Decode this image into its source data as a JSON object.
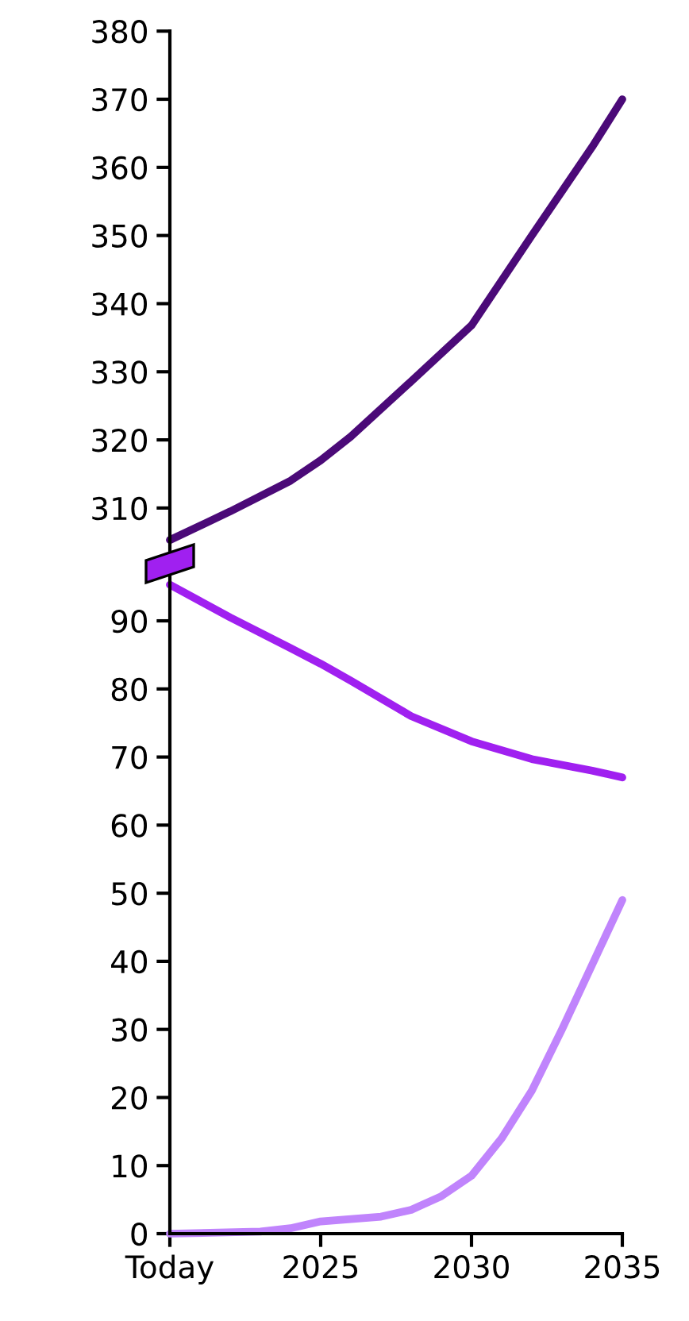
{
  "chart_data": [
    {
      "type": "line",
      "tick_labels": "y",
      "xlim": [
        2020,
        2035
      ],
      "ylim": [
        303,
        380
      ],
      "yticks": [
        310,
        320,
        330,
        340,
        350,
        360,
        370,
        380
      ],
      "series": [
        {
          "color": "#4b0a78",
          "x": [
            2020,
            2022,
            2024,
            2025,
            2026,
            2028,
            2030,
            2032,
            2034,
            2035
          ],
          "values": [
            305.3,
            309.5,
            314,
            317,
            320.5,
            328.6,
            336.8,
            350,
            363,
            370
          ]
        }
      ]
    },
    {
      "type": "line",
      "xlim": [
        2020,
        2035
      ],
      "ylim": [
        0,
        97
      ],
      "yticks": [
        0,
        10,
        20,
        30,
        40,
        50,
        60,
        70,
        80,
        90
      ],
      "xticks": [
        {
          "value": 2020,
          "label": "Today"
        },
        2025,
        2030,
        2035
      ],
      "series": [
        {
          "color": "#a020f0",
          "x": [
            2020,
            2022,
            2024,
            2025,
            2026,
            2028,
            2030,
            2032,
            2034,
            2035
          ],
          "values": [
            95.3,
            90.5,
            86,
            83.7,
            81.2,
            76,
            72.3,
            69.7,
            68,
            67
          ]
        },
        {
          "color": "#c084fc",
          "x": [
            2020,
            2023,
            2024,
            2025,
            2027,
            2028,
            2029,
            2030,
            2031,
            2032,
            2033,
            2034,
            2035
          ],
          "values": [
            0,
            0.3,
            0.8,
            1.8,
            2.5,
            3.5,
            5.5,
            8.5,
            14,
            21,
            30,
            39.5,
            49
          ]
        }
      ]
    }
  ]
}
